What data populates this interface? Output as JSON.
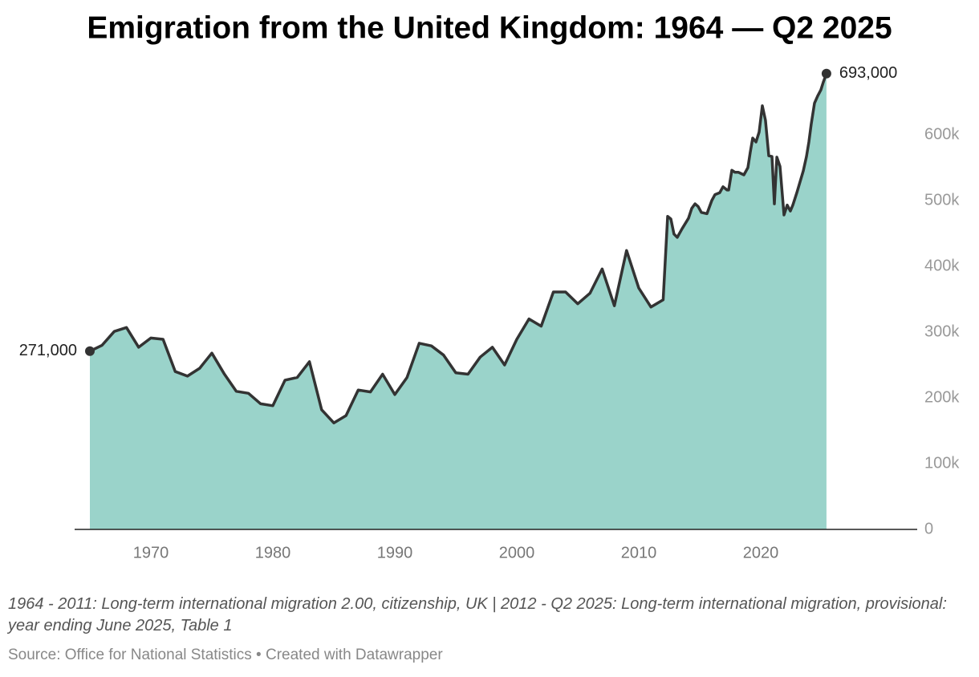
{
  "chart_data": {
    "type": "area",
    "title": "Emigration from the United Kingdom: 1964 — Q2 2025",
    "notes": "1964 - 2011: Long-term international migration 2.00, citizenship, UK | 2012 - Q2 2025: Long-term international migration, provisional: year ending June 2025, Table 1",
    "source": "Source: Office for National Statistics • Created with Datawrapper",
    "x": [
      1965,
      1966,
      1967,
      1968,
      1969,
      1970,
      1971,
      1972,
      1973,
      1974,
      1975,
      1976,
      1977,
      1978,
      1979,
      1980,
      1981,
      1982,
      1983,
      1984,
      1985,
      1986,
      1987,
      1988,
      1989,
      1990,
      1991,
      1992,
      1993,
      1994,
      1995,
      1996,
      1997,
      1998,
      1999,
      2000,
      2001,
      2002,
      2003,
      2004,
      2005,
      2006,
      2007,
      2008,
      2009,
      2010,
      2011,
      2012,
      2012.37,
      2012.63,
      2012.89,
      2013.16,
      2013.55,
      2014.08,
      2014.34,
      2014.61,
      2014.87,
      2015.13,
      2015.59,
      2015.99,
      2016.25,
      2016.64,
      2016.91,
      2017.24,
      2017.37,
      2017.63,
      2017.89,
      2018.16,
      2018.62,
      2018.95,
      2019.14,
      2019.34,
      2019.61,
      2019.87,
      2020.13,
      2020.39,
      2020.66,
      2020.92,
      2021.12,
      2021.32,
      2021.58,
      2021.91,
      2022.17,
      2022.43,
      2022.63,
      2022.96,
      2023.22,
      2023.49,
      2023.75,
      2023.95,
      2024.14,
      2024.41,
      2024.67,
      2024.93,
      2025.13,
      2025.39
    ],
    "series": [
      {
        "name": "Emigration",
        "color": "#333333",
        "fill": "#9ad3ca",
        "values": [
          271000,
          280000,
          301000,
          307000,
          277000,
          291000,
          289000,
          240000,
          233000,
          245000,
          268000,
          237000,
          210000,
          207000,
          191000,
          188000,
          227000,
          231000,
          255000,
          182000,
          162000,
          173000,
          212000,
          209000,
          236000,
          205000,
          231000,
          283000,
          279000,
          265000,
          238000,
          236000,
          262000,
          277000,
          250000,
          289000,
          320000,
          309000,
          361000,
          361000,
          343000,
          359000,
          396000,
          340000,
          424000,
          367000,
          338000,
          349000,
          476000,
          472000,
          449000,
          444000,
          457000,
          473000,
          488000,
          495000,
          491000,
          482000,
          480000,
          500000,
          509000,
          512000,
          521000,
          516000,
          516000,
          546000,
          543000,
          543000,
          539000,
          550000,
          573000,
          595000,
          589000,
          604000,
          644000,
          622000,
          568000,
          567000,
          495000,
          566000,
          552000,
          478000,
          493000,
          484000,
          493000,
          512000,
          528000,
          545000,
          567000,
          589000,
          616000,
          648000,
          659000,
          668000,
          680000,
          693000
        ],
        "value_labels": [
          "271,000",
          null,
          null,
          null,
          null,
          null,
          null,
          null,
          null,
          null,
          null,
          null,
          null,
          null,
          null,
          null,
          null,
          null,
          null,
          null,
          null,
          null,
          null,
          null,
          null,
          null,
          null,
          null,
          null,
          null,
          null,
          null,
          null,
          null,
          null,
          null,
          null,
          null,
          null,
          null,
          null,
          null,
          null,
          null,
          null,
          null,
          null,
          null,
          null,
          null,
          null,
          null,
          null,
          null,
          null,
          null,
          null,
          null,
          null,
          null,
          null,
          null,
          null,
          null,
          null,
          null,
          null,
          null,
          null,
          null,
          null,
          null,
          null,
          null,
          null,
          null,
          null,
          null,
          null,
          null,
          null,
          null,
          null,
          null,
          null,
          null,
          null,
          null,
          null,
          null,
          null,
          null,
          null,
          null,
          null,
          "693,000"
        ]
      }
    ],
    "xlim": [
      1963.75,
      2032.83
    ],
    "xticks": [
      1970,
      1980,
      1990,
      2000,
      2010,
      2020
    ],
    "ylim": [
      0,
      700000
    ],
    "yticks": [
      0,
      {
        "value": 100000,
        "label": "100k"
      },
      {
        "value": 200000,
        "label": "200k"
      },
      {
        "value": 300000,
        "label": "300k"
      },
      {
        "value": 400000,
        "label": "400k"
      },
      {
        "value": 500000,
        "label": "500k"
      },
      {
        "value": 600000,
        "label": "600k"
      }
    ]
  }
}
